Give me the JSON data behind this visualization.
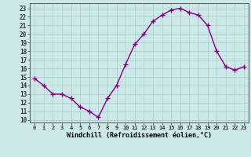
{
  "x": [
    0,
    1,
    2,
    3,
    4,
    5,
    6,
    7,
    8,
    9,
    10,
    11,
    12,
    13,
    14,
    15,
    16,
    17,
    18,
    19,
    20,
    21,
    22,
    23
  ],
  "y": [
    14.8,
    14.0,
    13.0,
    13.0,
    12.5,
    11.5,
    11.0,
    10.3,
    12.5,
    14.0,
    16.5,
    18.8,
    20.0,
    21.5,
    22.2,
    22.8,
    23.0,
    22.5,
    22.2,
    21.0,
    18.0,
    16.2,
    15.8,
    16.2
  ],
  "line_color": "#800080",
  "marker": "+",
  "marker_size": 4,
  "bg_color": "#cce8e8",
  "grid_color": "#aacccc",
  "xlabel": "Windchill (Refroidissement éolien,°C)",
  "ylabel_ticks": [
    10,
    11,
    12,
    13,
    14,
    15,
    16,
    17,
    18,
    19,
    20,
    21,
    22,
    23
  ],
  "xtick_labels": [
    "0",
    "1",
    "2",
    "3",
    "4",
    "5",
    "6",
    "7",
    "8",
    "9",
    "10",
    "11",
    "12",
    "13",
    "14",
    "15",
    "16",
    "17",
    "18",
    "19",
    "20",
    "21",
    "22",
    "23"
  ],
  "xlim": [
    -0.5,
    23.5
  ],
  "ylim": [
    9.7,
    23.6
  ]
}
